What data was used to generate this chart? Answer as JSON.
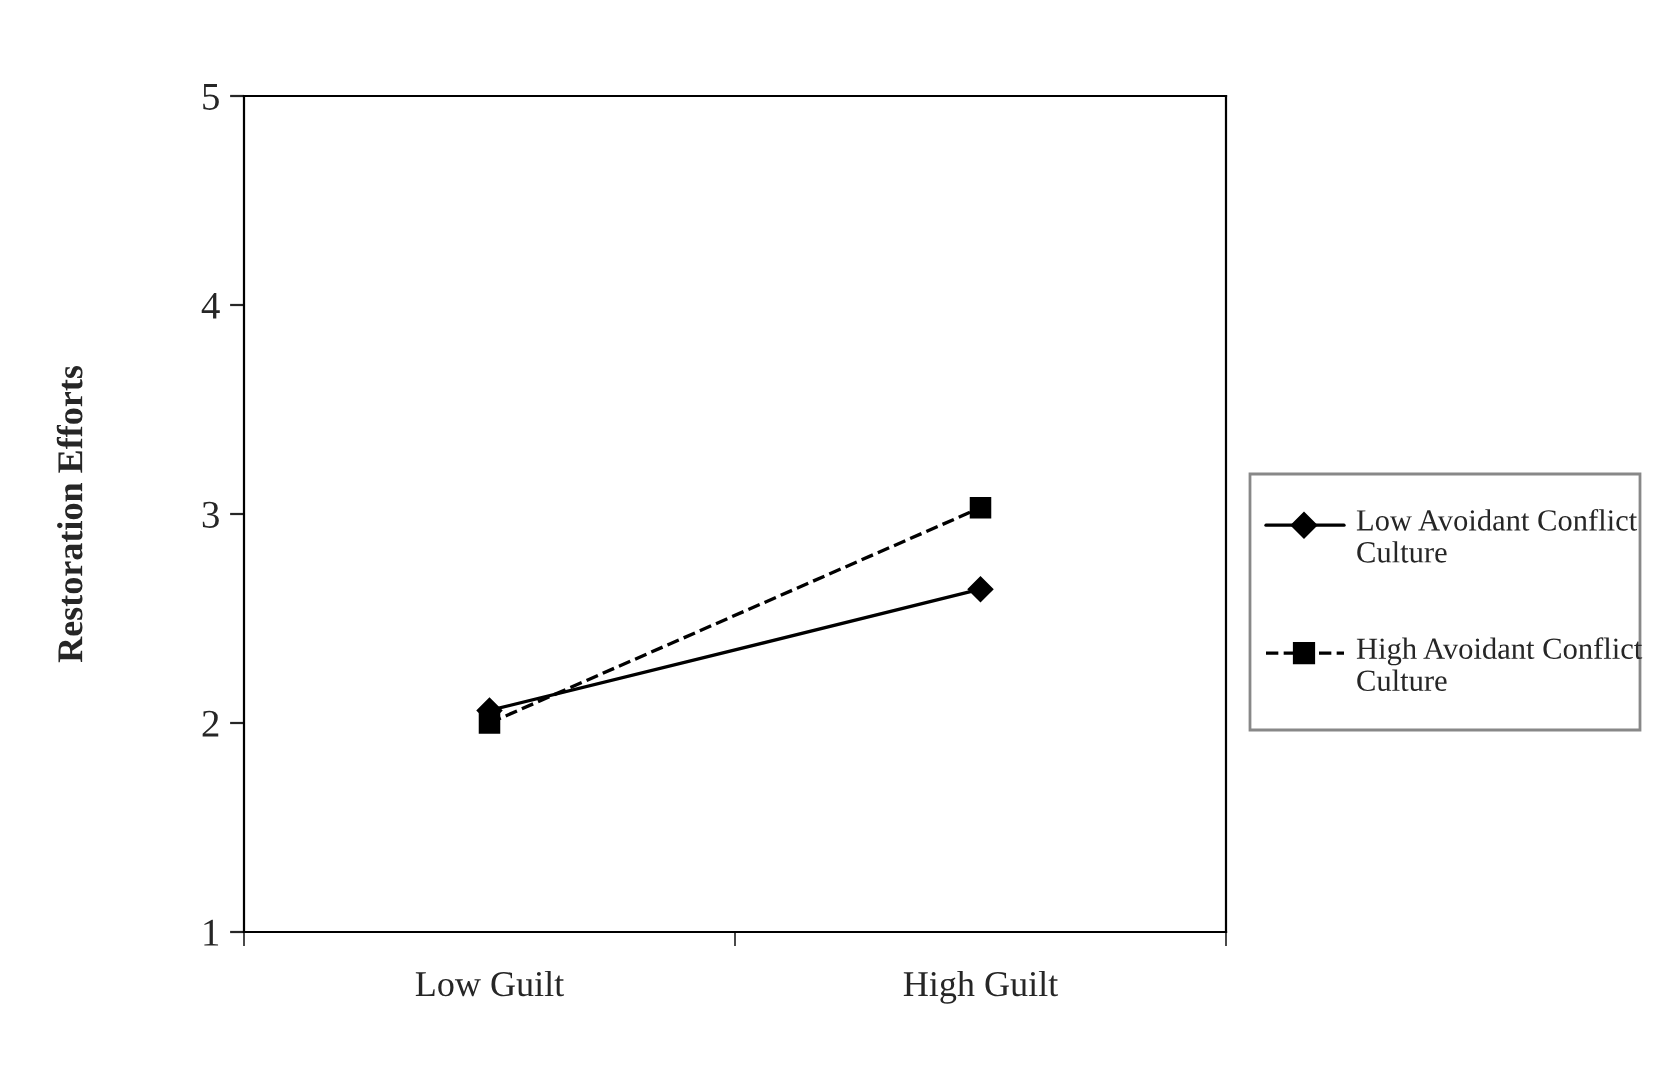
{
  "chart_data": {
    "type": "line",
    "ylabel": "Restoration Efforts",
    "categories": [
      "Low Guilt",
      "High Guilt"
    ],
    "series": [
      {
        "name": "Low Avoidant Conflict Culture",
        "color": "#000000",
        "values": [
          2.06,
          2.64
        ],
        "marker": "diamond",
        "line_style": "solid"
      },
      {
        "name": "High Avoidant Conflict Culture",
        "color": "#000000",
        "values": [
          2.0,
          3.03
        ],
        "marker": "square",
        "line_style": "dashed"
      }
    ],
    "ylim": [
      1,
      5
    ],
    "yticks": [
      1,
      2,
      3,
      4,
      5
    ],
    "grid": false,
    "legend": "right"
  }
}
